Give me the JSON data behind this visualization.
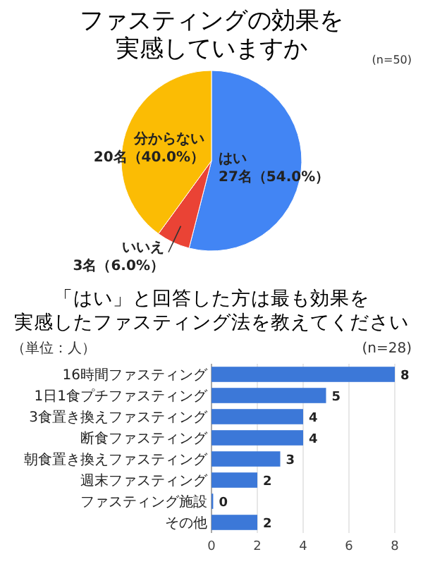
{
  "chart_data": [
    {
      "type": "pie",
      "title": "ファスティングの効果を実感していますか",
      "annotations": [
        "(n=50)"
      ],
      "categories": [
        "はい",
        "いいえ",
        "分からない"
      ],
      "values": [
        27,
        3,
        20
      ],
      "colors": [
        "#4285f4",
        "#ea4335",
        "#fbbc04"
      ],
      "value_labels": [
        "27名（54.0%）",
        "3名（6.0%）",
        "20名（40.0%）"
      ]
    },
    {
      "type": "bar",
      "orientation": "horizontal",
      "title": "「はい」と回答した方は最も効果を実感したファスティング法を教えてください",
      "annotations": [
        "（単位：人）",
        "(n=28)"
      ],
      "categories": [
        "16時間ファスティング",
        "1日1食プチファスティング",
        "3食置き換えファスティング",
        "断食ファスティング",
        "朝食置き換えファスティング",
        "週末ファスティング",
        "ファスティング施設",
        "その他"
      ],
      "values": [
        8,
        5,
        4,
        4,
        3,
        2,
        0,
        2
      ],
      "color": "#3c78d8",
      "xlim": [
        0,
        8
      ],
      "xticks": [
        0,
        2,
        4,
        6,
        8
      ],
      "grid": "x",
      "data_labels": true
    }
  ]
}
